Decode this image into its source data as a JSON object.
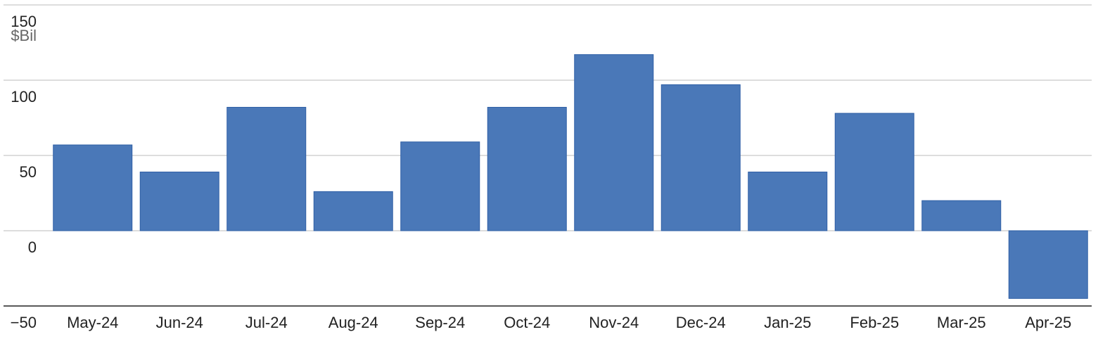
{
  "chart_data": {
    "type": "bar",
    "unit": "$Bil",
    "categories": [
      "May-24",
      "Jun-24",
      "Jul-24",
      "Aug-24",
      "Sep-24",
      "Oct-24",
      "Nov-24",
      "Dec-24",
      "Jan-25",
      "Feb-25",
      "Mar-25",
      "Apr-25"
    ],
    "values": [
      57,
      39,
      82,
      26,
      59,
      82,
      117,
      97,
      39,
      78,
      20,
      -45
    ],
    "color": "#4a78b8",
    "ylim": [
      -50,
      150
    ],
    "yticks": [
      {
        "value": -50,
        "label": "−50"
      },
      0,
      50,
      100,
      150
    ],
    "grid": true
  }
}
